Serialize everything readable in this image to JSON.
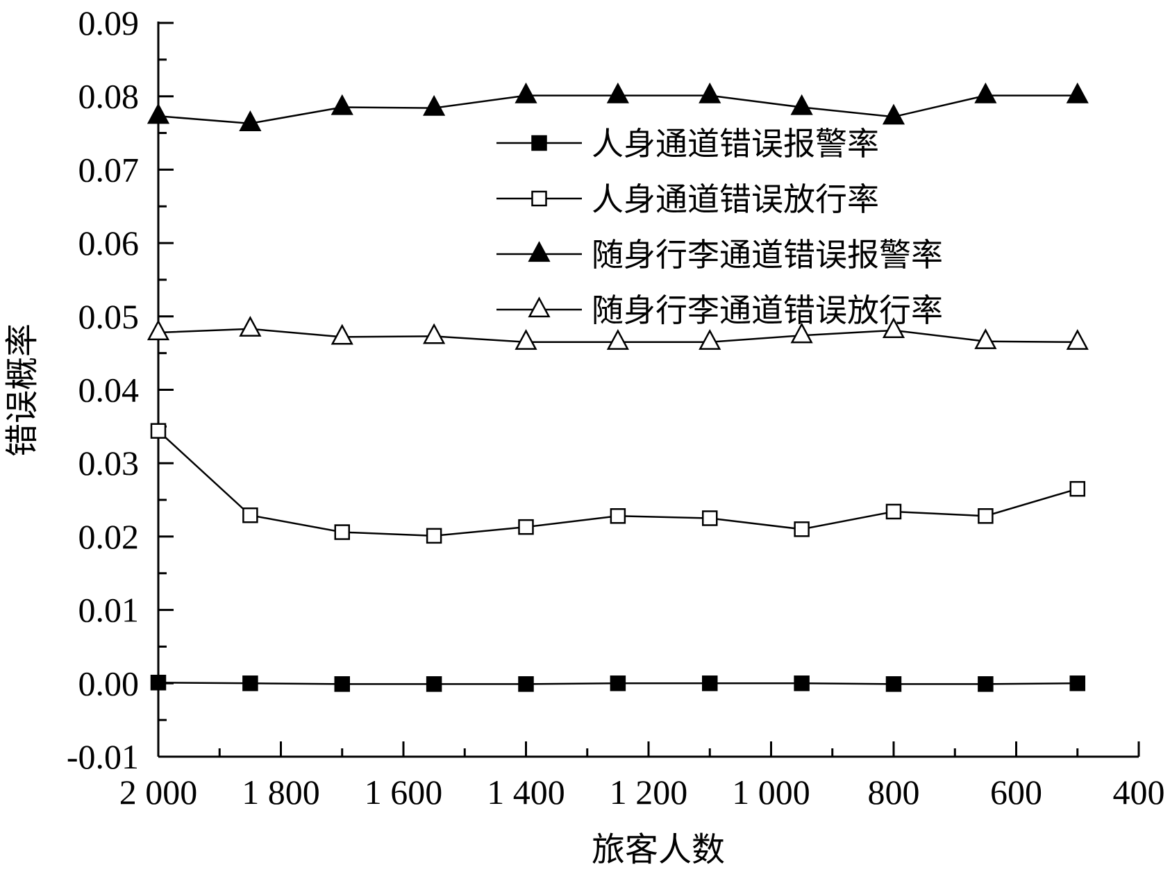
{
  "chart_data": {
    "type": "line",
    "xlabel": "旅客人数",
    "ylabel": "错误概率",
    "xlim": [
      2000,
      400
    ],
    "ylim": [
      -0.01,
      0.09
    ],
    "x_reversed": true,
    "grid": false,
    "legend_position": "top-right",
    "x_ticks": [
      2000,
      1800,
      1600,
      1400,
      1200,
      1000,
      800,
      600,
      400
    ],
    "x_tick_labels": [
      "2 000",
      "1 800",
      "1 600",
      "1 400",
      "1 200",
      "1 000",
      "800",
      "600",
      "400"
    ],
    "y_ticks": [
      -0.01,
      0.0,
      0.01,
      0.02,
      0.03,
      0.04,
      0.05,
      0.06,
      0.07,
      0.08,
      0.09
    ],
    "y_tick_labels": [
      "-0.01",
      "0.00",
      "0.01",
      "0.02",
      "0.03",
      "0.04",
      "0.05",
      "0.06",
      "0.07",
      "0.08",
      "0.09"
    ],
    "x": [
      2000,
      1850,
      1700,
      1550,
      1400,
      1250,
      1100,
      950,
      800,
      650,
      500
    ],
    "series": [
      {
        "name": "人身通道错误报警率",
        "marker": "square-filled",
        "values": [
          0.0001,
          0.0,
          -0.0001,
          -0.0001,
          -0.0001,
          0.0,
          0.0,
          0.0,
          -0.0001,
          -0.0001,
          0.0
        ]
      },
      {
        "name": "人身通道错误放行率",
        "marker": "square-open",
        "values": [
          0.0344,
          0.0229,
          0.0206,
          0.0201,
          0.0213,
          0.0228,
          0.0225,
          0.021,
          0.0234,
          0.0228,
          0.0265
        ]
      },
      {
        "name": "随身行李通道错误报警率",
        "marker": "triangle-filled",
        "values": [
          0.0773,
          0.0763,
          0.0785,
          0.0784,
          0.0801,
          0.0801,
          0.0801,
          0.0785,
          0.0772,
          0.0801,
          0.0801
        ]
      },
      {
        "name": "随身行李通道错误放行率",
        "marker": "triangle-open",
        "values": [
          0.0478,
          0.0483,
          0.0472,
          0.0473,
          0.0465,
          0.0465,
          0.0465,
          0.0474,
          0.0481,
          0.0466,
          0.0465
        ]
      }
    ]
  }
}
